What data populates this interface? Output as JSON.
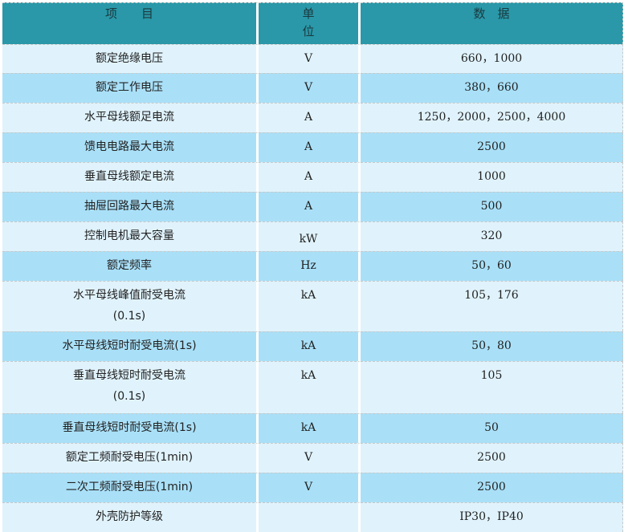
{
  "header": {
    "item": "项　　目",
    "unit_line1": "单",
    "unit_line2": "位",
    "data": "数　据"
  },
  "rows": [
    {
      "item": "额定绝缘电压",
      "unit": "V",
      "value": "660，1000"
    },
    {
      "item": "额定工作电压",
      "unit": "V",
      "value": "380，660"
    },
    {
      "item": "水平母线额足电流",
      "unit": "A",
      "value": "1250，2000，2500，4000"
    },
    {
      "item": "馈电电路最大电流",
      "unit": "A",
      "value": "2500"
    },
    {
      "item": "垂直母线额定电流",
      "unit": "A",
      "value": "1000"
    },
    {
      "item": "抽屉回路最大电流",
      "unit": "A",
      "value": "500"
    },
    {
      "item": "控制电机最大容量",
      "unit": "kW",
      "value": "320"
    },
    {
      "item": "额定频率",
      "unit": "Hz",
      "value": "50，60"
    },
    {
      "item": "水平母线峰值耐受电流",
      "item_line2": "(0.1s)",
      "unit": "kA",
      "value": "105，176"
    },
    {
      "item": "水平母线短时耐受电流(1s)",
      "unit": "kA",
      "value": "50，80"
    },
    {
      "item": "垂直母线短时耐受电流",
      "item_line2": "(0.1s)",
      "unit": "kA",
      "value": "105"
    },
    {
      "item": "垂直母线短时耐受电流(1s)",
      "unit": "kA",
      "value": "50"
    },
    {
      "item": "额定工频耐受电压(1min)",
      "unit": "V",
      "value": "2500"
    },
    {
      "item": "二次工频耐受电压(1min)",
      "unit": "V",
      "value": "2500"
    },
    {
      "item": "外壳防护等级",
      "unit": "",
      "value": "IP30，IP40"
    }
  ],
  "colors": {
    "header": "#2a98a8",
    "row_light": "#e0f3fc",
    "row_blue": "#a9e0f8"
  }
}
